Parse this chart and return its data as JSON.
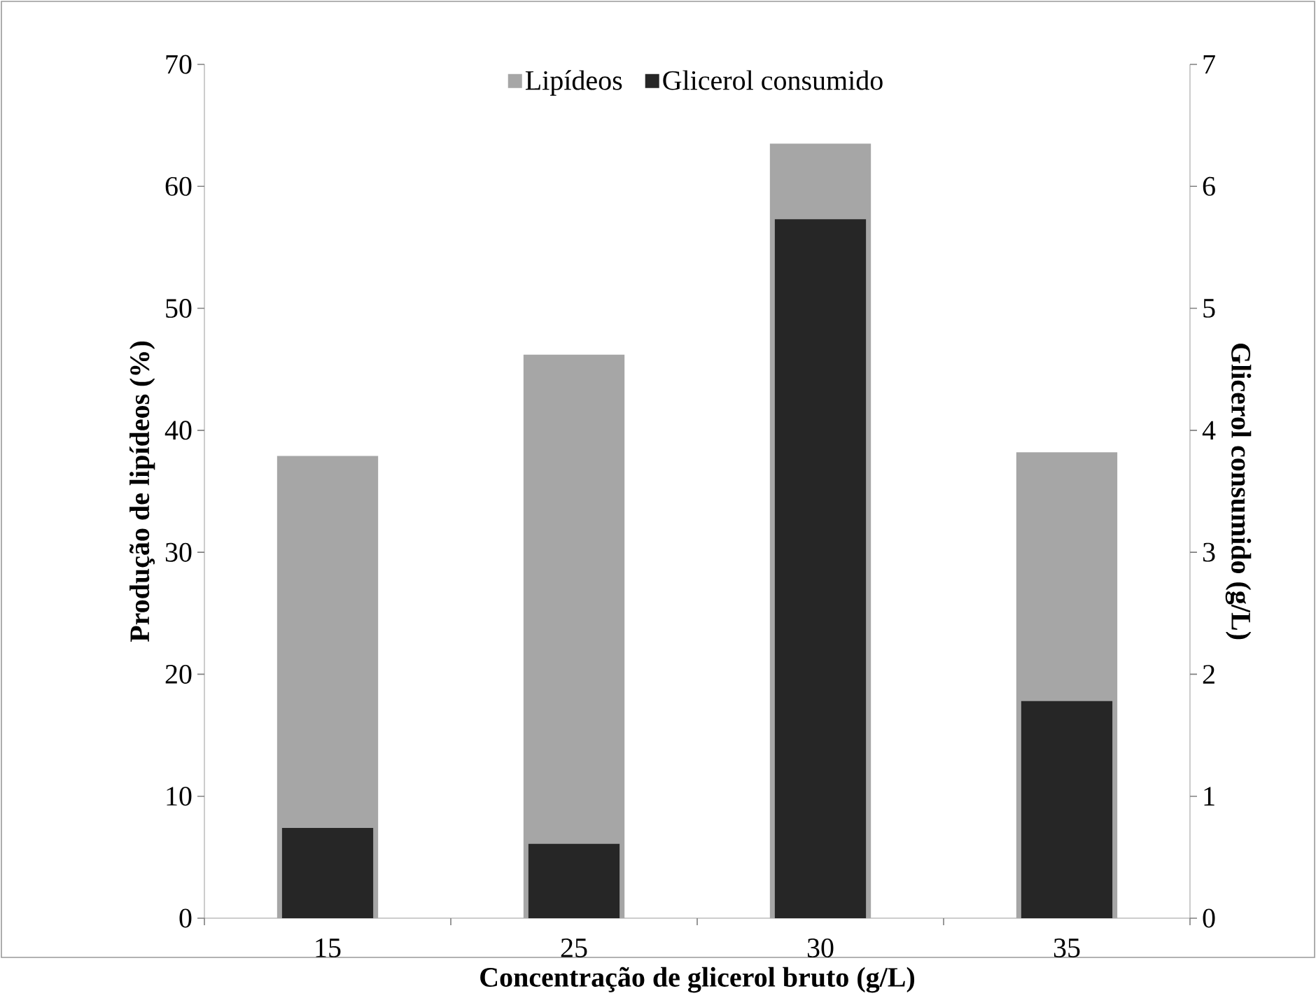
{
  "chart_data": {
    "type": "bar",
    "xlabel": "Concentração de glicerol bruto (g/L)",
    "ylabel": "Produção de lipídeos (%)",
    "y2label": "Glicerol consumido (g/L)",
    "categories": [
      "15",
      "25",
      "30",
      "35"
    ],
    "series": [
      {
        "name": "Lipídeos",
        "color": "#a6a6a6",
        "values": [
          37.9,
          46.2,
          63.5,
          38.2
        ]
      },
      {
        "name": "Glicerol consumido",
        "color": "#262626",
        "axis": "y2",
        "values": [
          0.74,
          0.61,
          5.73,
          1.78
        ]
      }
    ],
    "ylim": [
      0,
      70
    ],
    "yticks": [
      0,
      10,
      20,
      30,
      40,
      50,
      60,
      70
    ],
    "y2lim": [
      0,
      7
    ],
    "y2ticks": [
      0,
      1,
      2,
      3,
      4,
      5,
      6,
      7
    ],
    "grid": false,
    "legend": "top"
  }
}
